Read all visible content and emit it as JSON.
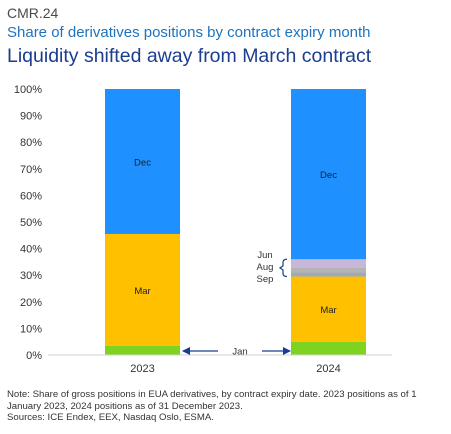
{
  "header": {
    "code": "CMR.24",
    "subtitle": "Share of derivatives positions by contract expiry month",
    "title": "Liquidity shifted away from March contract"
  },
  "chart_data": {
    "type": "bar",
    "stacked": true,
    "categories": [
      "2023",
      "2024"
    ],
    "yaxis": {
      "ylim": [
        0,
        100
      ],
      "ticks": [
        "0%",
        "10%",
        "20%",
        "30%",
        "40%",
        "50%",
        "60%",
        "70%",
        "80%",
        "90%",
        "100%"
      ],
      "grid": false
    },
    "series": [
      {
        "name": "Jan",
        "color": "#7ed321",
        "values": [
          3.5,
          5
        ]
      },
      {
        "name": "Mar",
        "color": "#ffc000",
        "values": [
          42,
          24.5
        ]
      },
      {
        "name": "Sep",
        "color": "#9fa9b8",
        "values": [
          0,
          1.5
        ]
      },
      {
        "name": "Aug",
        "color": "#b4b4b4",
        "values": [
          0,
          2
        ]
      },
      {
        "name": "Jun",
        "color": "#c7b8d9",
        "values": [
          0,
          3
        ]
      },
      {
        "name": "Dec",
        "color": "#1e90ff",
        "values": [
          54.5,
          64
        ]
      }
    ],
    "bar_labels": {
      "Dec": "Dec",
      "Mar": "Mar"
    },
    "annotations": {
      "month_labels": [
        "Jun",
        "Aug",
        "Sep"
      ],
      "jan_label": "Jan"
    }
  },
  "note": {
    "line1": "Note: Share of gross positions in EUA derivatives, by contract expiry date. 2023 positions as of 1 January 2023, 2024 positions as of 31 December 2023.",
    "line2": "Sources: ICE Endex, EEX, Nasdaq Oslo, ESMA."
  }
}
